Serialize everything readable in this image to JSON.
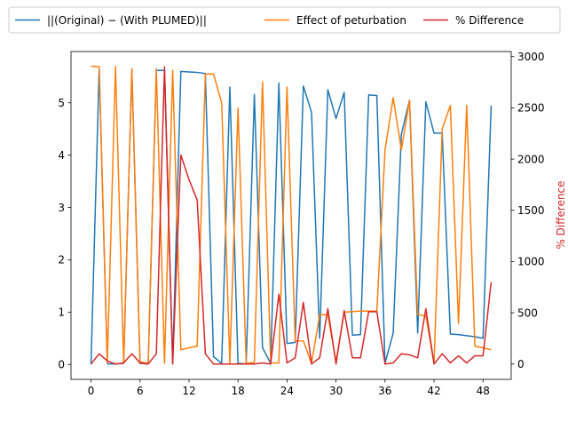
{
  "chart_data": {
    "type": "line",
    "title": "",
    "xlabel": "",
    "ylabel_left": "",
    "ylabel_right": "% Difference",
    "xlim": [
      -2.45,
      51.45
    ],
    "ylim_left": [
      -0.285,
      5.98
    ],
    "ylim_right": [
      -150,
      3050
    ],
    "xticks": [
      0,
      6,
      12,
      18,
      24,
      30,
      36,
      42,
      48
    ],
    "yticks_left": [
      0,
      1,
      2,
      3,
      4,
      5
    ],
    "yticks_right": [
      0,
      500,
      1000,
      1500,
      2000,
      2500,
      3000
    ],
    "legend": {
      "placement": "top, above plot",
      "columns": 3
    },
    "series": [
      {
        "name": "||(Original) − (With PLUMED)||",
        "axis": "left",
        "color": "#1f77b4",
        "x": [
          0,
          1,
          2,
          3,
          4,
          5,
          6,
          7,
          8,
          9,
          10,
          11,
          12,
          13,
          14,
          15,
          16,
          17,
          18,
          19,
          20,
          21,
          22,
          23,
          24,
          25,
          26,
          27,
          28,
          29,
          30,
          31,
          32,
          33,
          34,
          35,
          36,
          37,
          38,
          39,
          40,
          41,
          42,
          43,
          44,
          45,
          46,
          47,
          48,
          49
        ],
        "values": [
          0.0,
          5.65,
          0.01,
          0.01,
          0.02,
          5.64,
          0.02,
          0.01,
          5.62,
          5.62,
          0.02,
          5.6,
          5.59,
          5.58,
          5.56,
          0.15,
          0.02,
          5.3,
          0.02,
          0.01,
          5.16,
          0.32,
          0.02,
          5.38,
          0.4,
          0.42,
          5.32,
          4.82,
          0.5,
          5.25,
          4.7,
          5.2,
          0.56,
          0.57,
          5.15,
          5.14,
          0.02,
          0.6,
          4.4,
          5.05,
          0.6,
          5.02,
          4.42,
          4.42,
          0.58,
          0.57,
          0.55,
          0.53,
          0.5,
          4.95
        ]
      },
      {
        "name": "Effect of peturbation",
        "axis": "left",
        "color": "#ff7f0e",
        "x": [
          0,
          1,
          2,
          3,
          4,
          5,
          6,
          7,
          8,
          9,
          10,
          11,
          12,
          13,
          14,
          15,
          16,
          17,
          18,
          19,
          20,
          21,
          22,
          23,
          24,
          25,
          26,
          27,
          28,
          29,
          30,
          31,
          32,
          33,
          34,
          35,
          36,
          37,
          38,
          39,
          40,
          41,
          42,
          43,
          44,
          45,
          46,
          47,
          48,
          49
        ],
        "values": [
          5.7,
          5.69,
          0.03,
          5.7,
          0.02,
          5.65,
          0.05,
          0.02,
          5.65,
          0.02,
          5.62,
          0.28,
          0.32,
          0.35,
          5.55,
          5.55,
          5.0,
          0.02,
          4.9,
          0.02,
          0.04,
          5.4,
          0.03,
          0.03,
          5.3,
          0.45,
          0.45,
          0.02,
          0.95,
          0.95,
          0.05,
          1.0,
          1.01,
          1.02,
          1.02,
          1.02,
          4.1,
          5.1,
          4.1,
          5.05,
          0.95,
          0.93,
          0.02,
          4.5,
          4.95,
          0.78,
          4.95,
          0.35,
          0.32,
          0.28
        ]
      },
      {
        "name": "% Difference",
        "axis": "right",
        "color": "#d62728",
        "x": [
          0,
          1,
          2,
          3,
          4,
          5,
          6,
          7,
          8,
          9,
          10,
          11,
          12,
          13,
          14,
          15,
          16,
          17,
          18,
          19,
          20,
          21,
          22,
          23,
          24,
          25,
          26,
          27,
          28,
          29,
          30,
          31,
          32,
          33,
          34,
          35,
          36,
          37,
          38,
          39,
          40,
          41,
          42,
          43,
          44,
          45,
          46,
          47,
          48,
          49
        ],
        "values": [
          0,
          100,
          30,
          0,
          10,
          100,
          10,
          0,
          100,
          2900,
          0,
          2040,
          1800,
          1600,
          100,
          0,
          0,
          0,
          0,
          0,
          0,
          10,
          0,
          680,
          10,
          60,
          600,
          0,
          60,
          540,
          0,
          520,
          60,
          60,
          510,
          510,
          0,
          10,
          100,
          90,
          60,
          540,
          0,
          100,
          10,
          80,
          10,
          80,
          80,
          800
        ]
      }
    ]
  }
}
